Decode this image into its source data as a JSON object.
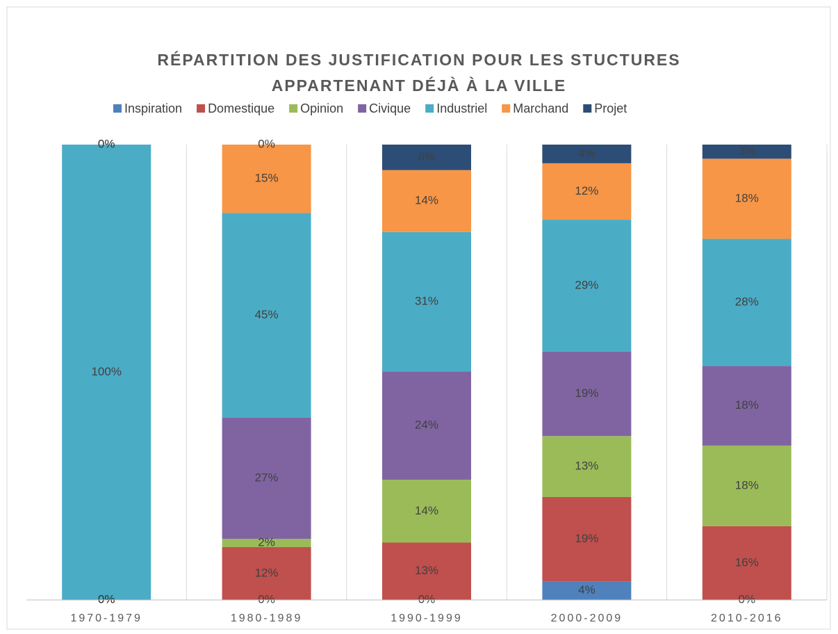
{
  "chart_data": {
    "type": "stacked_bar",
    "title": [
      "RÉPARTITION DES JUSTIFICATION POUR LES STUCTURES",
      "APPARTENANT DÉJÀ À LA VILLE"
    ],
    "categories": [
      "1970-1979",
      "1980-1989",
      "1990-1999",
      "2000-2009",
      "2010-2016"
    ],
    "ylim": [
      0,
      100
    ],
    "legend": "top",
    "series": [
      {
        "name": "Inspiration",
        "color": "#4f81bd",
        "values": [
          0,
          0,
          0,
          4.1,
          0
        ],
        "value_labels": [
          "0%",
          "0%",
          "0%",
          "4%",
          "0%"
        ]
      },
      {
        "name": "Domestique",
        "color": "#c0504d",
        "values": [
          0,
          11.6,
          12.6,
          18.5,
          16.2
        ],
        "value_labels": [
          "0%",
          "12%",
          "13%",
          "19%",
          "16%"
        ]
      },
      {
        "name": "Opinion",
        "color": "#9bbb59",
        "values": [
          0,
          1.8,
          13.8,
          13.4,
          17.7
        ],
        "value_labels": [
          "0%",
          "2%",
          "14%",
          "13%",
          "18%"
        ]
      },
      {
        "name": "Civique",
        "color": "#8064a2",
        "values": [
          0,
          26.6,
          23.8,
          18.5,
          17.5
        ],
        "value_labels": [
          "0%",
          "27%",
          "24%",
          "19%",
          "18%"
        ]
      },
      {
        "name": "Industriel",
        "color": "#4bacc6",
        "values": [
          100,
          45,
          30.6,
          29,
          27.9
        ],
        "value_labels": [
          "100%",
          "45%",
          "31%",
          "29%",
          "28%"
        ]
      },
      {
        "name": "Marchand",
        "color": "#f79646",
        "values": [
          0,
          15,
          13.6,
          12.4,
          17.6
        ],
        "value_labels": [
          "0%",
          "15%",
          "14%",
          "12%",
          "18%"
        ]
      },
      {
        "name": "Projet",
        "color": "#2c4d75",
        "values": [
          0,
          0,
          5.6,
          4.1,
          3.1
        ],
        "value_labels": [
          "0%",
          "0%",
          "6%",
          "4%",
          "3%"
        ]
      }
    ]
  }
}
